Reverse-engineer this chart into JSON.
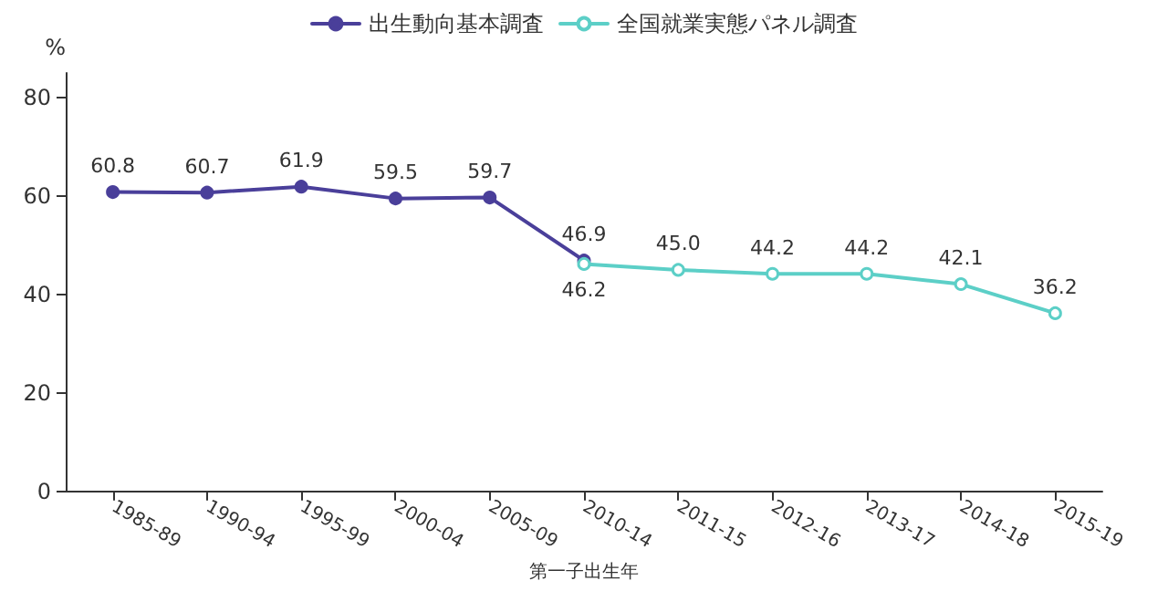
{
  "chart_data": {
    "type": "line",
    "xlabel": "第一子出生年",
    "ylabel": "%",
    "categories": [
      "1985-89",
      "1990-94",
      "1995-99",
      "2000-04",
      "2005-09",
      "2010-14",
      "2011-15",
      "2012-16",
      "2013-17",
      "2014-18",
      "2015-19"
    ],
    "ylim": [
      0,
      85
    ],
    "yticks": [
      0,
      20,
      40,
      60,
      80
    ],
    "series": [
      {
        "name": "出生動向基本調査",
        "color": "#4a3f9a",
        "values": [
          60.8,
          60.7,
          61.9,
          59.5,
          59.7,
          46.9,
          null,
          null,
          null,
          null,
          null
        ]
      },
      {
        "name": "全国就業実態パネル調査",
        "color": "#5ccfc7",
        "values": [
          null,
          null,
          null,
          null,
          null,
          46.2,
          45.0,
          44.2,
          44.2,
          42.1,
          36.2
        ],
        "value_labels": [
          null,
          null,
          null,
          null,
          null,
          "46.2",
          "45.0",
          "44.2",
          "44.2",
          "42.1",
          "36.2"
        ]
      }
    ],
    "data_labels": true,
    "grid": false,
    "legend": "top",
    "marker": "circle",
    "line_style": "solid"
  }
}
